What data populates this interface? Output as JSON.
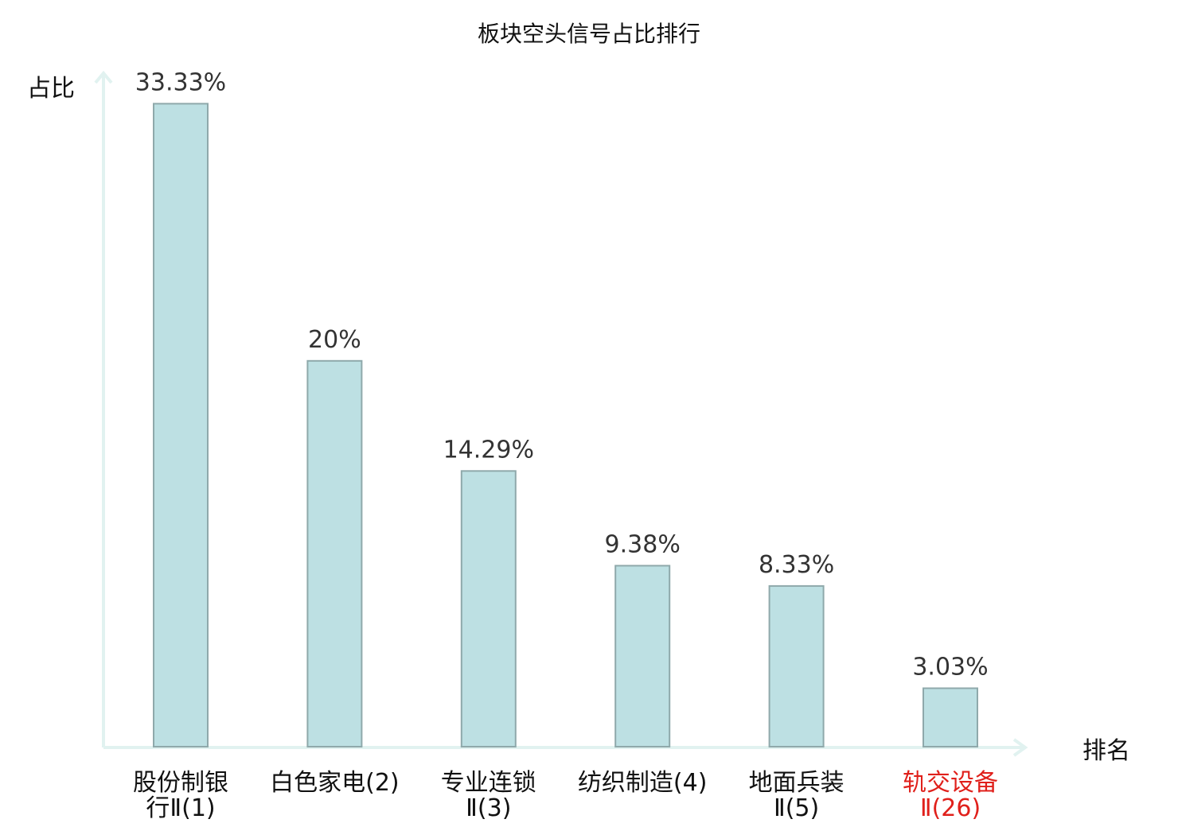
{
  "chart_data": {
    "type": "bar",
    "title": "板块空头信号占比排行",
    "xlabel": "排名",
    "ylabel": "占比",
    "ylim": [
      0,
      35
    ],
    "grid": false,
    "categories": [
      {
        "lines": [
          "股份制银",
          "行Ⅱ(1)"
        ],
        "highlight": false
      },
      {
        "lines": [
          "白色家电(2)"
        ],
        "highlight": false
      },
      {
        "lines": [
          "专业连锁",
          "Ⅱ(3)"
        ],
        "highlight": false
      },
      {
        "lines": [
          "纺织制造(4)"
        ],
        "highlight": false
      },
      {
        "lines": [
          "地面兵装",
          "Ⅱ(5)"
        ],
        "highlight": false
      },
      {
        "lines": [
          "轨交设备",
          "Ⅱ(26)"
        ],
        "highlight": true
      }
    ],
    "values": [
      33.33,
      20,
      14.29,
      9.38,
      8.33,
      3.03
    ],
    "value_labels": [
      "33.33%",
      "20%",
      "14.29%",
      "9.38%",
      "8.33%",
      "3.03%"
    ],
    "colors": {
      "bar_fill": "#bde0e3",
      "bar_stroke": "#8fa9ab",
      "axis": "#e1f2f0",
      "highlight_text": "#e0201b"
    }
  }
}
